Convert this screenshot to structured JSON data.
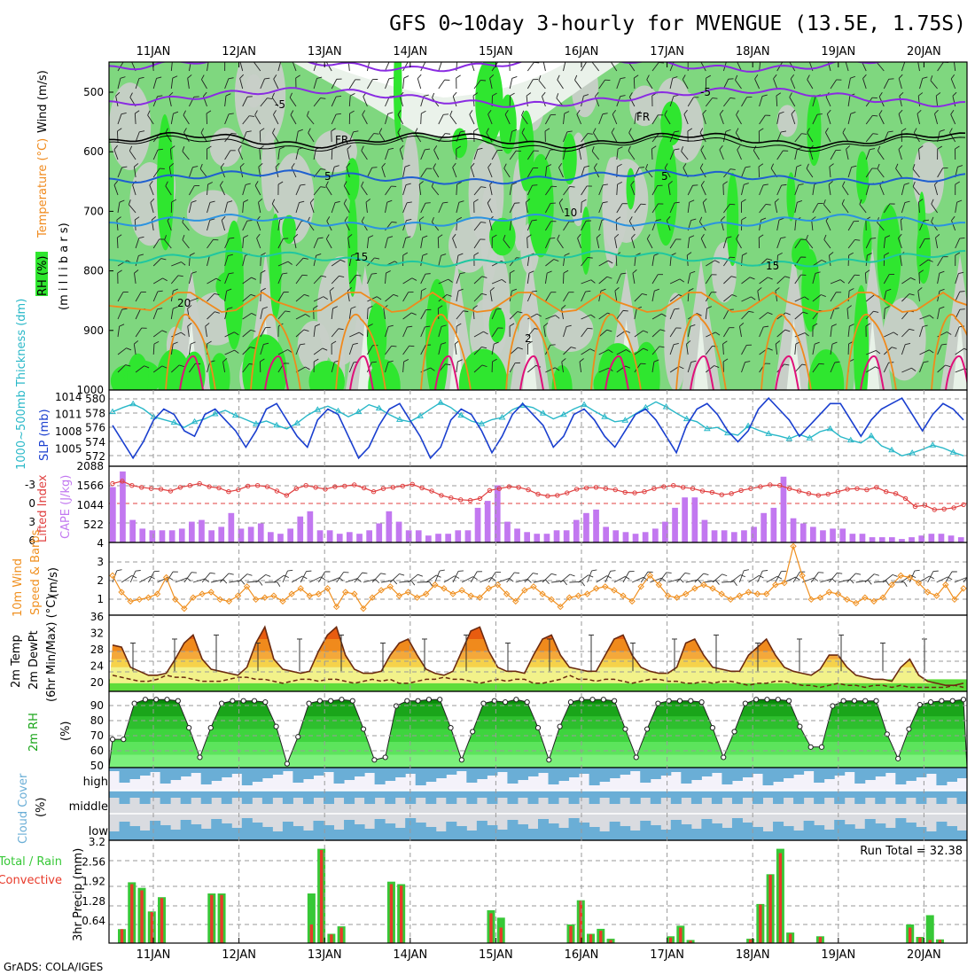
{
  "header": {
    "title": "GFS 0~10day 3-hourly for MVENGUE (13.5E, 1.75S)",
    "credit": "GrADS: COLA/IGES",
    "run_total": "Run Total = 32.38"
  },
  "colors": {
    "rh_light": "#7fd77f",
    "rh_mid": "#2fe62f",
    "rh_dark": "#009a00",
    "gray_light": "#c8cfc8",
    "temp_purple": "#8a2be2",
    "temp_blue": "#1f5fd0",
    "temp_lightblue": "#2b93e0",
    "temp_teal": "#1fc7a0",
    "temp_orange": "#f08a1c",
    "temp_magenta": "#e0107a",
    "slp": "#1a3fcf",
    "thickness": "#29b8c8",
    "lifted": "#e04040",
    "cape": "#c278f0",
    "wind10": "#f09020",
    "cloud": "#6aaed6",
    "cloud_bg": "#f4f2fa",
    "precip_total": "#37c837",
    "precip_conv": "#e83a2a"
  },
  "axis": {
    "days": [
      "11JAN",
      "12JAN",
      "13JAN",
      "14JAN",
      "15JAN",
      "16JAN",
      "17JAN",
      "18JAN",
      "19JAN",
      "20JAN"
    ]
  },
  "panels": {
    "upper": {
      "label_rh": "RH (%)",
      "label_temp": "Temperature (°C)",
      "label_wind": "Wind (m/s)",
      "label_pressure": "(m i l l i b a r s)",
      "yticks": [
        "500",
        "600",
        "700",
        "800",
        "900",
        "1000"
      ],
      "contour_labels": {
        "purple": "-5",
        "black": "FR",
        "blue": "5",
        "lightblue": "10",
        "teal": "15",
        "orange": "20"
      }
    },
    "slp": {
      "label_left": "1000~500mb Thickness (dm)",
      "label_right": "SLP (mb)",
      "yticks_left": [
        "580",
        "578",
        "576",
        "574",
        "572"
      ],
      "yticks_right": [
        "1014",
        "1011",
        "1008",
        "1005"
      ]
    },
    "cape": {
      "label_left": "Lifted Index",
      "label_right": "CAPE (J/kg)",
      "yticks_left": [
        "-3",
        "0",
        "3",
        "6"
      ],
      "yticks_right": [
        "2088",
        "1566",
        "1044",
        "522"
      ]
    },
    "wind10": {
      "label_a": "10m Wind",
      "label_b": "Speed & Barbs",
      "label_c": "(m/s)",
      "yticks": [
        "4",
        "3",
        "2",
        "1"
      ]
    },
    "temp2m": {
      "label_a": "2m Temp",
      "label_b": "2m DewPt",
      "label_c": "(6hr Min/Max) (°C)",
      "yticks": [
        "36",
        "32",
        "28",
        "24",
        "20"
      ]
    },
    "rh2m": {
      "label_a": "2m RH",
      "label_b": "(%)",
      "yticks": [
        "90",
        "80",
        "70",
        "60",
        "50"
      ]
    },
    "cloud": {
      "label_a": "Cloud Cover",
      "label_b": "(%)",
      "rows": [
        "high",
        "middle",
        "low"
      ]
    },
    "precip": {
      "label_a": "Total / Rain",
      "label_b": "Convective",
      "label_c": "3hr Precip (mm)",
      "yticks": [
        "3.2",
        "2.56",
        "1.92",
        "1.28",
        "0.64"
      ]
    }
  },
  "chart_data": [
    {
      "type": "line",
      "title": "SLP (mb) and 1000~500mb Thickness (dm)",
      "series": [
        {
          "name": "SLP (mb)",
          "values": [
            1010,
            1007,
            1004,
            1007,
            1011,
            1013,
            1012,
            1009,
            1008,
            1012,
            1013,
            1011,
            1009,
            1006,
            1009,
            1013,
            1014,
            1011,
            1008,
            1006,
            1011,
            1013,
            1012,
            1008,
            1004,
            1006,
            1010,
            1013,
            1014,
            1011,
            1008,
            1004,
            1006,
            1011,
            1013,
            1012,
            1009,
            1005,
            1008,
            1012,
            1014,
            1012,
            1010,
            1006,
            1008,
            1012,
            1013,
            1011,
            1008,
            1006,
            1009,
            1012,
            1013,
            1011,
            1008,
            1005,
            1010,
            1013,
            1014,
            1012,
            1009,
            1007,
            1009,
            1013,
            1015,
            1013,
            1011,
            1008,
            1010,
            1012,
            1014,
            1014,
            1011,
            1008,
            1011,
            1013,
            1014,
            1015,
            1012,
            1009,
            1012,
            1014,
            1013,
            1011
          ]
        },
        {
          "name": "1000~500mb Thickness (dm)",
          "values": [
            578.3,
            578.9,
            579.4,
            578.7,
            577.6,
            577.2,
            576.8,
            576.1,
            576.9,
            577.3,
            578.0,
            578.5,
            577.8,
            577.2,
            576.6,
            577.0,
            576.4,
            575.9,
            576.7,
            577.8,
            578.6,
            579.1,
            578.4,
            577.6,
            578.3,
            579.3,
            578.8,
            577.9,
            577.2,
            576.9,
            577.7,
            578.7,
            579.6,
            578.9,
            577.8,
            577.0,
            576.6,
            577.2,
            577.5,
            578.6,
            579.2,
            578.9,
            578.1,
            577.3,
            577.9,
            578.7,
            579.3,
            578.4,
            577.6,
            576.9,
            577.1,
            578.0,
            578.9,
            579.7,
            579.0,
            578.1,
            577.3,
            576.9,
            575.9,
            576.1,
            575.3,
            575.0,
            576.3,
            575.7,
            575.2,
            574.9,
            574.5,
            575.1,
            574.6,
            575.5,
            575.9,
            574.8,
            574.3,
            573.9,
            574.9,
            573.5,
            572.9,
            572.1,
            572.5,
            573.0,
            573.6,
            573.2,
            572.6,
            572.1
          ]
        }
      ]
    },
    {
      "type": "bar",
      "title": "CAPE (J/kg) and Lifted Index",
      "series": [
        {
          "name": "CAPE (J/kg)",
          "values": [
            1600,
            2050,
            650,
            400,
            350,
            350,
            350,
            400,
            600,
            650,
            350,
            450,
            850,
            400,
            450,
            550,
            300,
            250,
            400,
            750,
            900,
            350,
            350,
            250,
            300,
            250,
            350,
            550,
            900,
            600,
            350,
            350,
            200,
            250,
            250,
            350,
            350,
            1000,
            1200,
            1650,
            600,
            400,
            300,
            250,
            250,
            350,
            350,
            650,
            850,
            950,
            450,
            350,
            300,
            250,
            300,
            400,
            600,
            1000,
            1300,
            1300,
            650,
            350,
            350,
            300,
            350,
            450,
            850,
            1000,
            1900,
            700,
            550,
            450,
            350,
            400,
            400,
            250,
            250,
            150,
            150,
            150,
            100,
            150,
            200,
            250,
            250,
            200,
            150
          ]
        },
        {
          "name": "Lifted Index",
          "values": [
            -3.2,
            -3.6,
            -2.9,
            -2.6,
            -2.4,
            -2.3,
            -2.0,
            -2.6,
            -2.9,
            -3.2,
            -2.7,
            -2.5,
            -1.9,
            -2.2,
            -2.8,
            -2.9,
            -2.7,
            -2.0,
            -1.3,
            -2.4,
            -2.9,
            -2.6,
            -2.3,
            -2.7,
            -2.8,
            -3.0,
            -2.5,
            -1.9,
            -2.4,
            -2.6,
            -2.8,
            -3.1,
            -2.5,
            -2.0,
            -1.3,
            -0.9,
            -0.6,
            -0.5,
            -0.8,
            -2.1,
            -2.4,
            -2.7,
            -2.6,
            -2.2,
            -1.5,
            -1.2,
            -1.3,
            -1.7,
            -2.3,
            -2.5,
            -2.6,
            -2.4,
            -2.2,
            -1.8,
            -1.7,
            -1.9,
            -2.4,
            -2.7,
            -2.9,
            -2.6,
            -2.4,
            -2.0,
            -1.8,
            -1.4,
            -1.6,
            -2.1,
            -2.4,
            -2.7,
            -3.0,
            -2.9,
            -2.4,
            -2.0,
            -1.6,
            -1.3,
            -1.5,
            -1.9,
            -2.3,
            -2.4,
            -2.2,
            -2.6,
            -1.9,
            -1.6,
            -0.8,
            0.5,
            0.3,
            1.0,
            0.9,
            0.7,
            0.2
          ]
        }
      ]
    },
    {
      "type": "line",
      "title": "10m Wind Speed (m/s)",
      "series": [
        {
          "name": "10m Wind Speed",
          "values": [
            2.3,
            1.4,
            0.9,
            1.0,
            1.1,
            1.3,
            2.2,
            1.0,
            0.5,
            1.1,
            1.3,
            1.4,
            1.0,
            0.9,
            1.2,
            1.7,
            1.0,
            1.1,
            1.2,
            0.9,
            1.3,
            1.6,
            1.2,
            1.3,
            1.6,
            0.6,
            1.4,
            1.3,
            0.5,
            1.1,
            1.5,
            1.7,
            1.2,
            1.4,
            1.1,
            1.3,
            1.8,
            1.6,
            1.3,
            1.5,
            1.2,
            1.1,
            1.6,
            1.8,
            1.3,
            0.9,
            1.5,
            1.7,
            1.3,
            1.0,
            0.6,
            1.1,
            1.2,
            1.3,
            1.6,
            1.7,
            1.5,
            1.2,
            0.9,
            1.7,
            2.3,
            1.8,
            1.2,
            1.1,
            1.3,
            1.6,
            1.8,
            1.6,
            1.3,
            1.0,
            1.2,
            1.4,
            1.3,
            1.3,
            1.8,
            1.9,
            3.9,
            2.3,
            1.0,
            1.1,
            1.4,
            1.3,
            1.0,
            0.8,
            1.1,
            0.9,
            1.1,
            1.8,
            2.3,
            2.2,
            1.9,
            1.4,
            1.2,
            1.8,
            1.0,
            1.6
          ]
        }
      ]
    },
    {
      "type": "area",
      "title": "2m Temp / 2m DewPt (°C)",
      "series": [
        {
          "name": "2m Temp",
          "values": [
            29.5,
            29.0,
            24.0,
            23.0,
            22.0,
            22.0,
            22.5,
            26.0,
            30.0,
            32.0,
            26.0,
            23.5,
            23.0,
            22.5,
            22.0,
            24.0,
            30.0,
            34.0,
            26.0,
            23.5,
            23.0,
            22.5,
            23.0,
            28.0,
            32.0,
            34.0,
            27.0,
            23.5,
            22.5,
            22.5,
            23.0,
            27.0,
            30.0,
            31.0,
            27.0,
            23.5,
            22.5,
            22.0,
            23.0,
            28.0,
            33.0,
            34.0,
            28.0,
            24.0,
            23.0,
            23.0,
            22.5,
            27.0,
            31.0,
            32.0,
            27.0,
            24.0,
            23.5,
            23.0,
            23.0,
            27.0,
            31.0,
            32.0,
            27.0,
            24.0,
            23.0,
            22.5,
            22.5,
            24.0,
            30.0,
            31.0,
            27.0,
            24.0,
            23.5,
            23.0,
            23.0,
            27.0,
            29.0,
            31.0,
            27.0,
            24.0,
            23.0,
            22.5,
            22.0,
            23.5,
            27.0,
            27.0,
            24.0,
            22.0,
            21.5,
            21.0,
            21.0,
            20.5,
            24.0,
            26.0,
            22.0,
            20.5,
            20.0,
            19.5,
            19.5,
            20.0
          ]
        },
        {
          "name": "2m DewPt",
          "values": [
            22.0,
            21.5,
            21.0,
            20.5,
            20.5,
            21.0,
            22.0,
            21.5,
            21.5,
            21.0,
            20.5,
            20.5,
            20.5,
            21.0,
            21.5,
            21.5,
            21.0,
            21.0,
            20.5,
            20.0,
            20.5,
            21.0,
            21.0,
            20.5,
            21.0,
            21.0,
            20.5,
            20.0,
            20.5,
            21.0,
            20.5,
            21.0,
            20.0,
            20.0,
            20.5,
            21.0,
            21.0,
            21.5,
            21.0,
            21.0,
            20.5,
            20.0,
            20.5,
            21.0,
            20.5,
            21.0,
            21.0,
            20.0,
            20.0,
            20.5,
            21.0,
            22.0,
            21.0,
            21.0,
            20.5,
            21.0,
            21.0,
            20.5,
            20.0,
            20.5,
            21.0,
            21.0,
            20.5,
            20.5,
            20.0,
            20.0,
            20.5,
            20.0,
            20.5,
            20.5,
            20.0,
            19.5,
            20.0,
            20.0,
            20.5,
            20.5,
            20.0,
            19.5,
            19.5,
            19.0,
            19.5,
            20.0,
            19.5,
            19.5,
            19.0,
            19.5,
            19.5,
            19.0,
            19.5,
            19.0,
            19.0,
            19.0,
            19.0,
            19.0,
            19.5,
            19.0
          ]
        }
      ]
    },
    {
      "type": "area",
      "title": "2m RH (%)",
      "series": [
        {
          "name": "2m RH",
          "values": [
            62,
            62,
            90,
            93,
            93,
            93,
            92,
            71,
            48,
            71,
            90,
            92,
            92,
            92,
            91,
            72,
            43,
            64,
            90,
            92,
            92,
            93,
            92,
            70,
            46,
            48,
            88,
            92,
            92,
            93,
            93,
            71,
            46,
            68,
            90,
            92,
            91,
            93,
            91,
            71,
            46,
            72,
            91,
            93,
            93,
            93,
            92,
            70,
            48,
            70,
            90,
            92,
            92,
            92,
            91,
            71,
            48,
            68,
            90,
            93,
            93,
            93,
            92,
            72,
            56,
            56,
            88,
            92,
            92,
            92,
            92,
            66,
            47,
            70,
            89,
            91,
            92,
            92,
            93
          ]
        }
      ]
    },
    {
      "type": "bar",
      "title": "3hr Precip (mm)",
      "ylim": [
        0,
        3.2
      ],
      "series": [
        {
          "name": "Total",
          "values": [
            0.45,
            1.96,
            1.78,
            1.02,
            1.48,
            0,
            0,
            0,
            0,
            1.6,
            1.6,
            0,
            0,
            0,
            0,
            0,
            0,
            0,
            0,
            1.6,
            3.04,
            0.3,
            0.54,
            0,
            0,
            0,
            0,
            1.98,
            1.9,
            0,
            0,
            0,
            0,
            0,
            0,
            0,
            0,
            1.06,
            0.82,
            0,
            0,
            0,
            0,
            0,
            0,
            0.6,
            1.38,
            0.3,
            0.46,
            0.14,
            0,
            0,
            0,
            0,
            0,
            0.22,
            0.56,
            0.1,
            0,
            0,
            0,
            0,
            0,
            0.14,
            1.26,
            2.22,
            3.04,
            0.34,
            0,
            0,
            0.22,
            0,
            0,
            0,
            0,
            0,
            0,
            0,
            0,
            0.6,
            0.2,
            0.9,
            0.12,
            0,
            0,
            0
          ]
        },
        {
          "name": "Convective",
          "values": [
            0.45,
            1.9,
            1.7,
            1.0,
            1.45,
            0,
            0,
            0,
            0,
            1.55,
            1.55,
            0,
            0,
            0,
            0,
            0,
            0,
            0,
            0,
            0.6,
            3.0,
            0.28,
            0.5,
            0,
            0,
            0,
            0,
            1.9,
            1.85,
            0,
            0,
            0,
            0,
            0,
            0,
            0,
            0,
            0.96,
            0.5,
            0,
            0,
            0,
            0,
            0,
            0,
            0.55,
            1.36,
            0.28,
            0.4,
            0.1,
            0,
            0,
            0,
            0,
            0,
            0.18,
            0.5,
            0.08,
            0,
            0,
            0,
            0,
            0,
            0.12,
            1.24,
            2.2,
            2.9,
            0.3,
            0,
            0,
            0.2,
            0,
            0,
            0,
            0,
            0,
            0,
            0,
            0,
            0.5,
            0.18,
            0.1,
            0.1,
            0,
            0,
            0
          ]
        }
      ]
    }
  ]
}
